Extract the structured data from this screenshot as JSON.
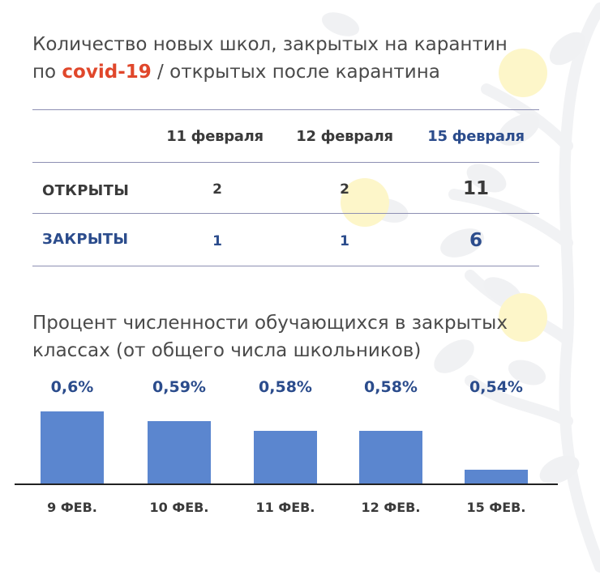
{
  "table": {
    "title_part1": "Количество новых школ, закрытых на карантин",
    "title_part2_prefix": "по ",
    "title_covid": "covid-19",
    "title_part2_suffix": " / открытых после карантина",
    "columns": [
      "11 февраля",
      "12 февраля",
      "15 февраля"
    ],
    "rows": [
      {
        "label": "ОТКРЫТЫ",
        "values": [
          "2",
          "2",
          "11"
        ]
      },
      {
        "label": "ЗАКРЫТЫ",
        "values": [
          "1",
          "1",
          "6"
        ]
      }
    ]
  },
  "chart_title_line1": "Процент численности обучающихся в закрытых",
  "chart_title_line2": "классах (от общего числа школьников)",
  "colors": {
    "accent": "#2b4c8c",
    "covid": "#e0472b",
    "bar": "#5b86cf",
    "rule": "#8d8fb3"
  },
  "chart_data": {
    "type": "bar",
    "categories": [
      "9 ФЕВ.",
      "10 ФЕВ.",
      "11 ФЕВ.",
      "12 ФЕВ.",
      "15 ФЕВ."
    ],
    "values": [
      0.6,
      0.59,
      0.58,
      0.58,
      0.54
    ],
    "value_labels": [
      "0,6%",
      "0,59%",
      "0,58%",
      "0,58%",
      "0,54%"
    ],
    "title": "Процент численности обучающихся в закрытых классах (от общего числа школьников)",
    "xlabel": "",
    "ylabel": "",
    "ylim": [
      0.525,
      0.6
    ],
    "grid": false,
    "legend": "none"
  }
}
